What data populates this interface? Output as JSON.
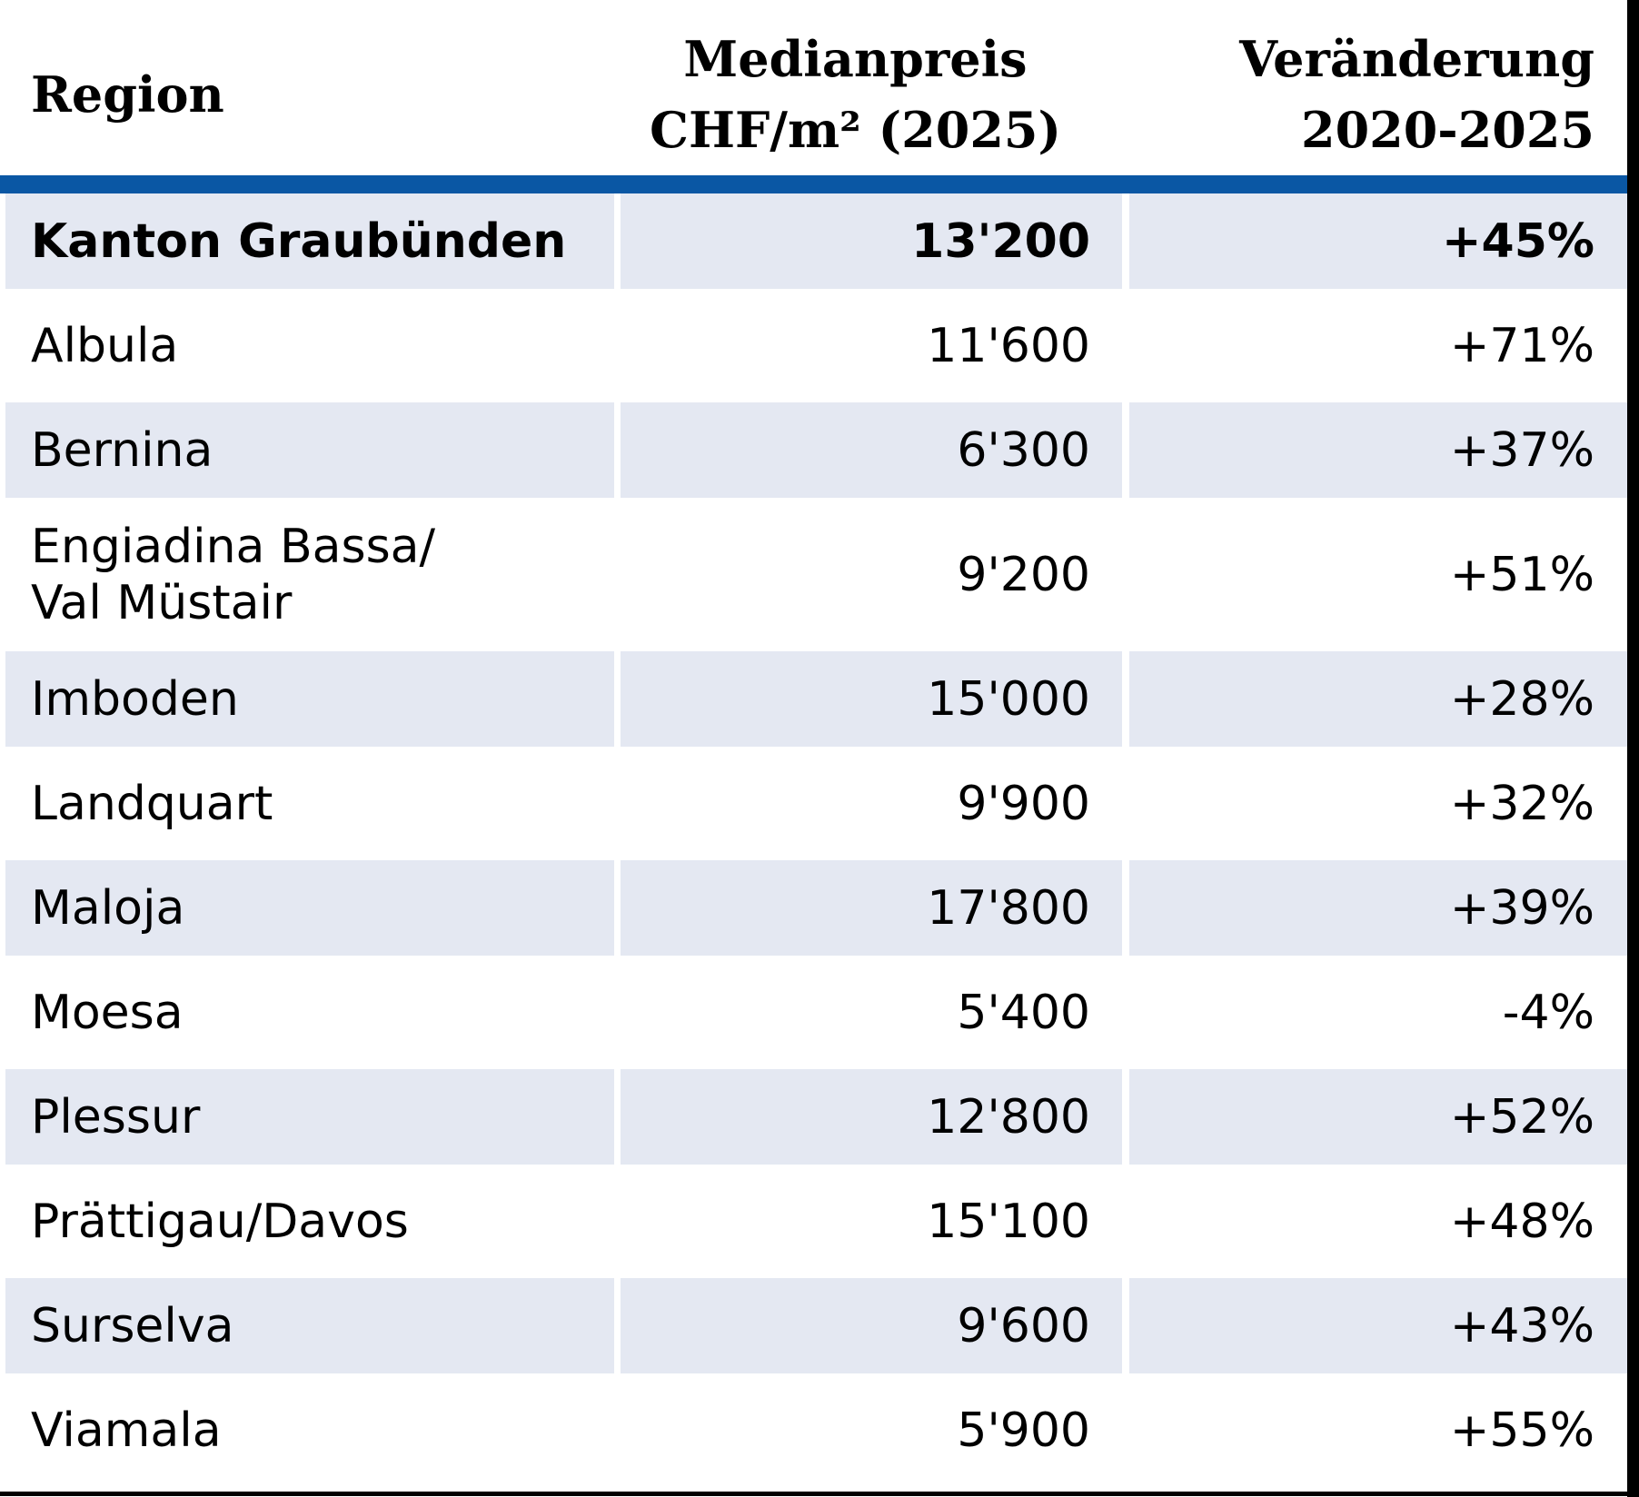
{
  "colors": {
    "header_bar_blue": "#0a57a4",
    "row_shade": "#e4e8f2",
    "frame_black": "#000000",
    "text": "#000000"
  },
  "header": {
    "col1": {
      "line1": "Region"
    },
    "col2": {
      "line1": "Medianpreis",
      "line2": "CHF/m² (2025)"
    },
    "col3": {
      "line1": "Veränderung",
      "line2": "2020-2025"
    }
  },
  "table": {
    "summary_row": {
      "region": "Kanton Graubünden",
      "price": "13'200",
      "change": "+45%"
    },
    "rows": [
      {
        "region": "Albula",
        "price": "11'600",
        "change": "+71%"
      },
      {
        "region": "Bernina",
        "price": "6'300",
        "change": "+37%"
      },
      {
        "region": "Engiadina Bassa/\nVal Müstair",
        "price": "9'200",
        "change": "+51%"
      },
      {
        "region": "Imboden",
        "price": "15'000",
        "change": "+28%"
      },
      {
        "region": "Landquart",
        "price": "9'900",
        "change": "+32%"
      },
      {
        "region": "Maloja",
        "price": "17'800",
        "change": "+39%"
      },
      {
        "region": "Moesa",
        "price": "5'400",
        "change": "-4%"
      },
      {
        "region": "Plessur",
        "price": "12'800",
        "change": "+52%"
      },
      {
        "region": "Prättigau/Davos",
        "price": "15'100",
        "change": "+48%"
      },
      {
        "region": "Surselva",
        "price": "9'600",
        "change": "+43%"
      },
      {
        "region": "Viamala",
        "price": "5'900",
        "change": "+55%"
      }
    ]
  },
  "chart_data": {
    "type": "table",
    "title": "",
    "columns": [
      "Region",
      "Medianpreis CHF/m² (2025)",
      "Veränderung 2020-2025"
    ],
    "rows": [
      [
        "Kanton Graubünden",
        "13'200",
        "+45%"
      ],
      [
        "Albula",
        "11'600",
        "+71%"
      ],
      [
        "Bernina",
        "6'300",
        "+37%"
      ],
      [
        "Engiadina Bassa/Val Müstair",
        "9'200",
        "+51%"
      ],
      [
        "Imboden",
        "15'000",
        "+28%"
      ],
      [
        "Landquart",
        "9'900",
        "+32%"
      ],
      [
        "Maloja",
        "17'800",
        "+39%"
      ],
      [
        "Moesa",
        "5'400",
        "-4%"
      ],
      [
        "Plessur",
        "12'800",
        "+52%"
      ],
      [
        "Prättigau/Davos",
        "15'100",
        "+48%"
      ],
      [
        "Surselva",
        "9'600",
        "+43%"
      ],
      [
        "Viamala",
        "5'900",
        "+55%"
      ]
    ],
    "prices_chf_per_m2": [
      13200,
      11600,
      6300,
      9200,
      15000,
      9900,
      17800,
      5400,
      12800,
      15100,
      9600,
      5900
    ],
    "change_pct_2020_2025": [
      45,
      71,
      37,
      51,
      28,
      32,
      39,
      -4,
      52,
      48,
      43,
      55
    ]
  }
}
